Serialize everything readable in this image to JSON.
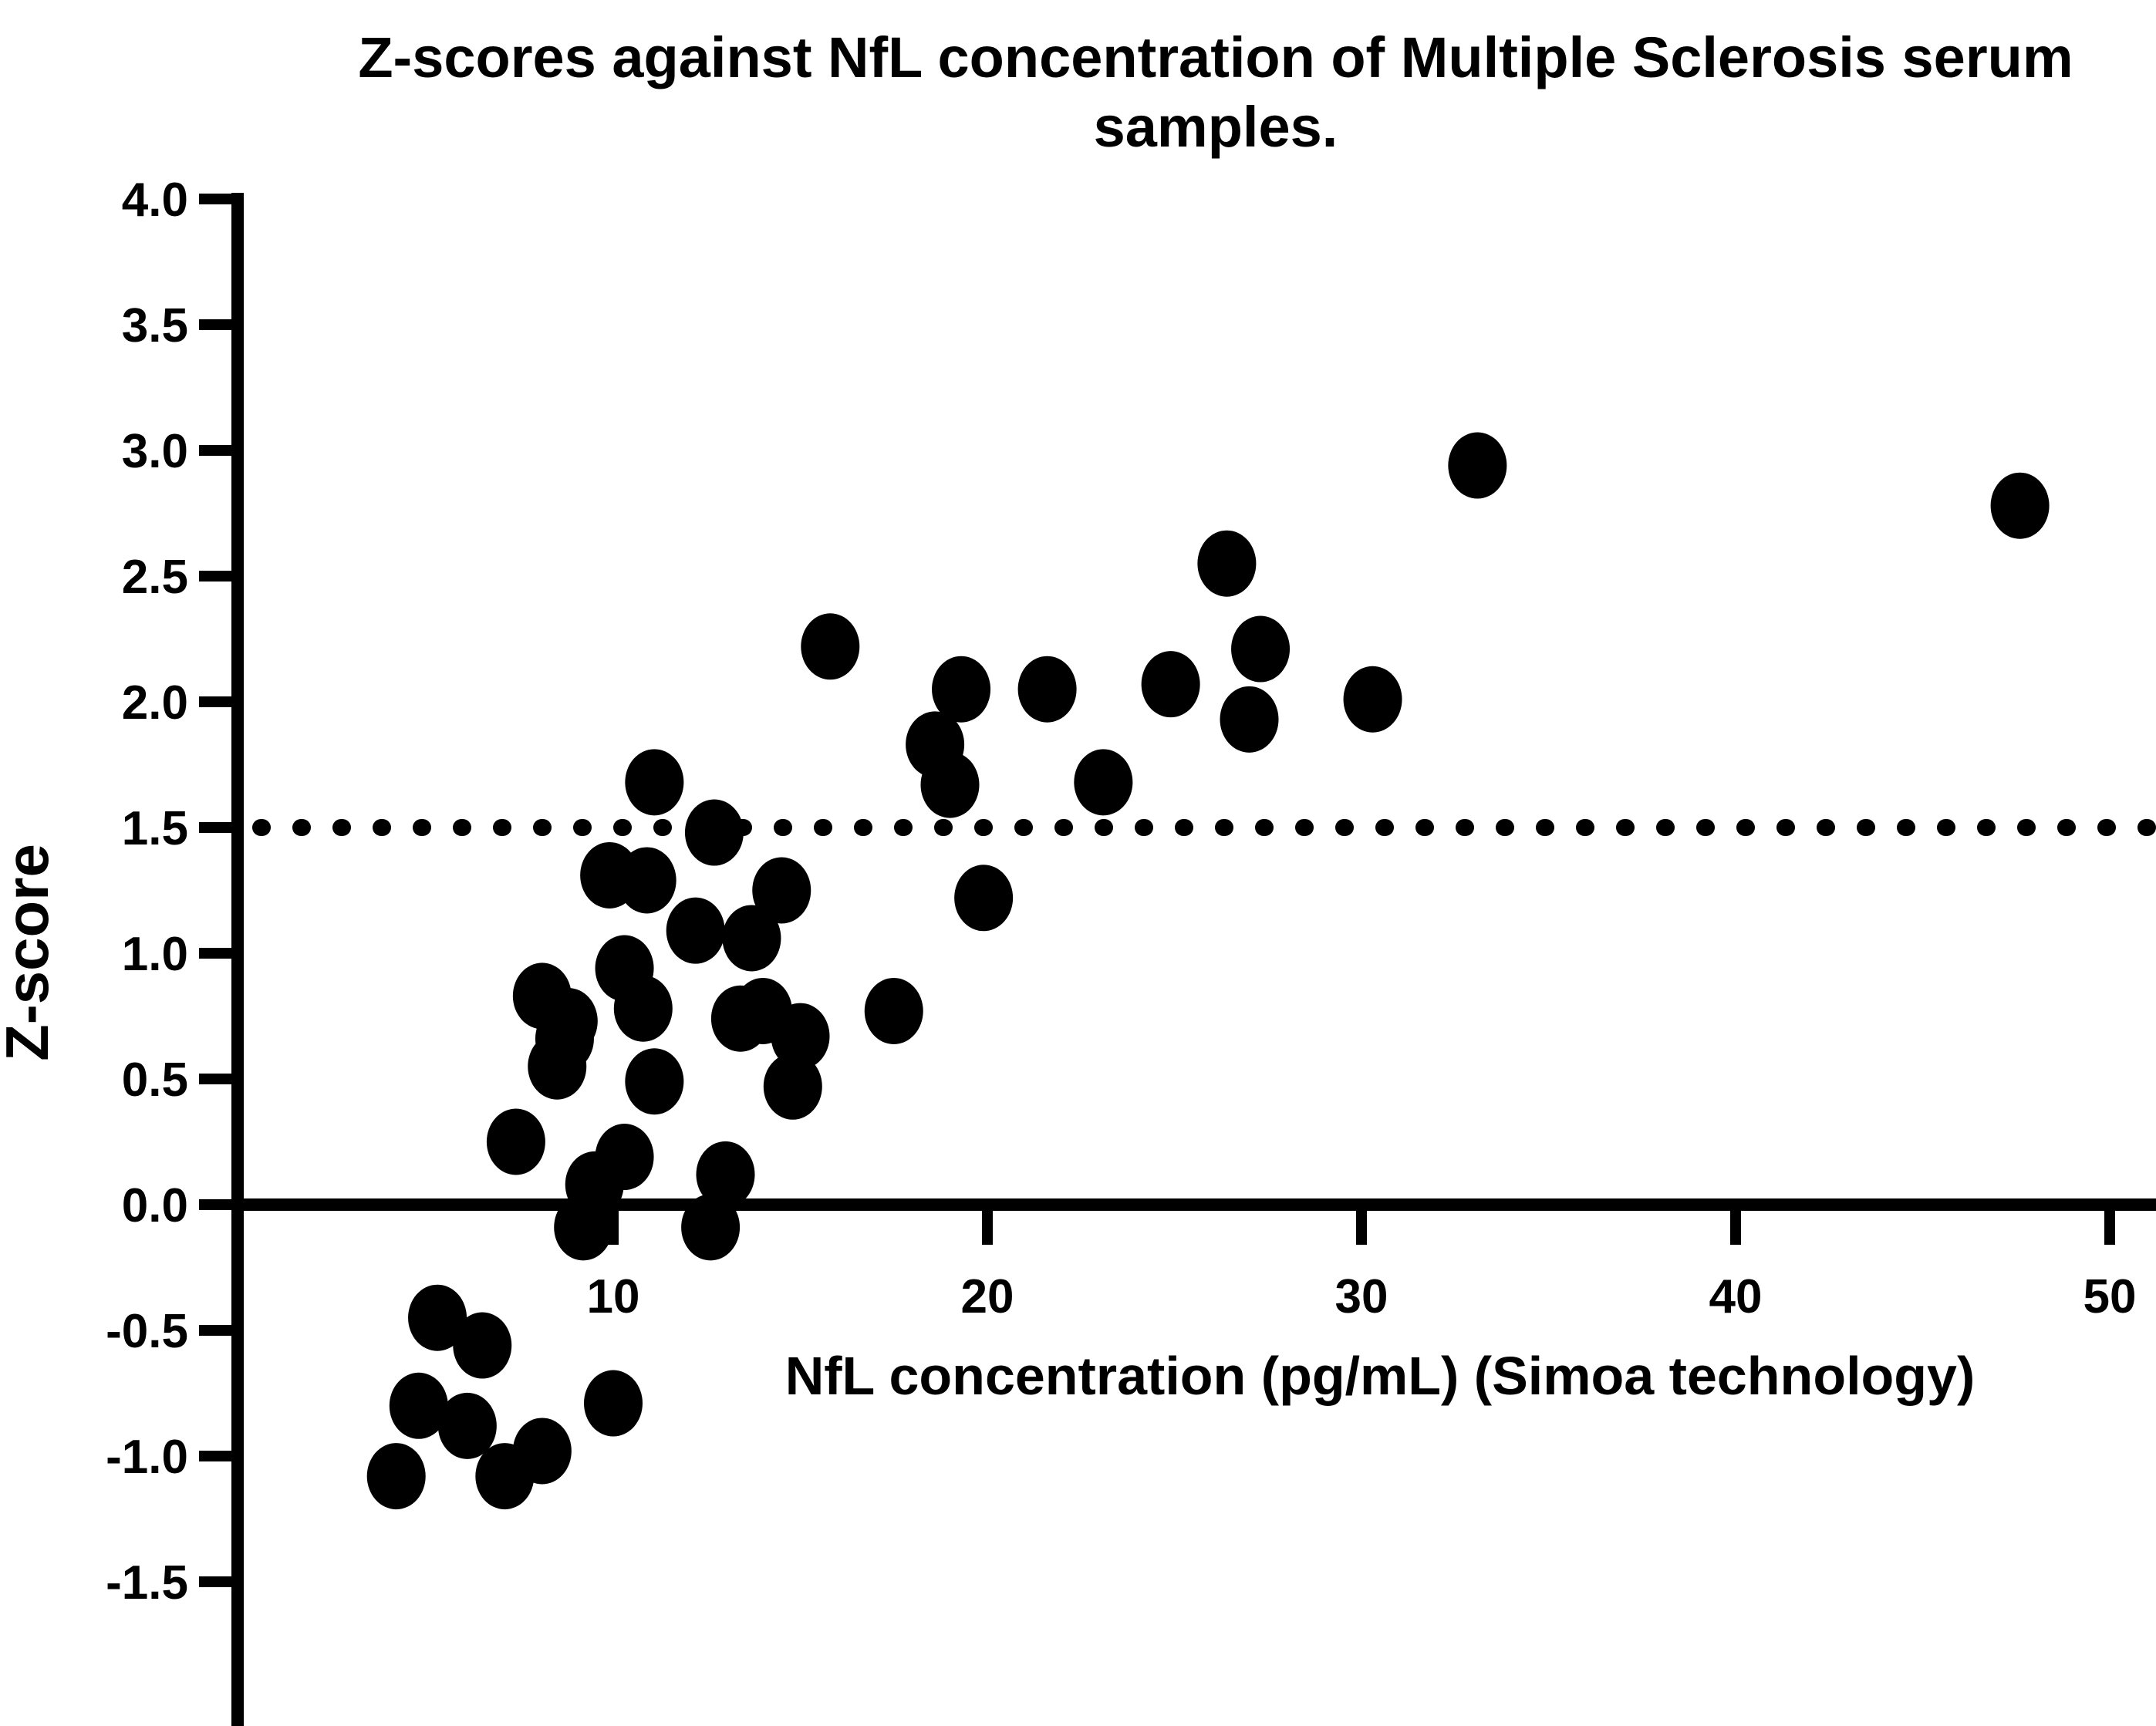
{
  "figure": {
    "title_line1": "Z-scores against NfL concentration of Multiple Sclerosis serum",
    "title_line2": "samples."
  },
  "chart_data": {
    "type": "scatter",
    "title": "Z-scores against NfL concentration of Multiple Sclerosis serum samples.",
    "xlabel": "NfL concentration (pg/mL) (Simoa technology)",
    "ylabel": "Z-score",
    "xlim": [
      0,
      51.2
    ],
    "ylim": [
      -2.08,
      4.0
    ],
    "x_ticks": [
      10,
      20,
      30,
      40,
      50
    ],
    "y_ticks": [
      4.0,
      3.5,
      3.0,
      2.5,
      2.0,
      1.5,
      1.0,
      0.5,
      0.0,
      -0.5,
      -1.0,
      -1.5
    ],
    "grid": false,
    "legend": "none",
    "threshold_line": {
      "y": 1.5,
      "style": "dotted",
      "color": "#000000"
    },
    "baseline": {
      "y": 0.0,
      "style": "solid",
      "color": "#000000"
    },
    "marker": {
      "shape": "ellipse",
      "color": "#000000"
    },
    "points": [
      [
        5.3,
        -0.45
      ],
      [
        6.5,
        -0.56
      ],
      [
        4.8,
        -0.8
      ],
      [
        6.1,
        -0.88
      ],
      [
        4.2,
        -1.08
      ],
      [
        7.1,
        -1.08
      ],
      [
        8.1,
        -0.98
      ],
      [
        10.0,
        -0.79
      ],
      [
        9.2,
        -0.09
      ],
      [
        12.6,
        -0.09
      ],
      [
        9.5,
        0.08
      ],
      [
        13.0,
        0.12
      ],
      [
        7.4,
        0.25
      ],
      [
        10.3,
        0.19
      ],
      [
        8.5,
        0.55
      ],
      [
        8.8,
        0.73
      ],
      [
        11.1,
        0.49
      ],
      [
        14.8,
        0.47
      ],
      [
        14.0,
        0.77
      ],
      [
        8.1,
        0.83
      ],
      [
        8.7,
        0.66
      ],
      [
        10.3,
        0.94
      ],
      [
        10.8,
        0.78
      ],
      [
        12.2,
        1.09
      ],
      [
        13.7,
        1.06
      ],
      [
        13.4,
        0.74
      ],
      [
        15.0,
        0.67
      ],
      [
        17.5,
        0.77
      ],
      [
        9.9,
        1.31
      ],
      [
        10.9,
        1.29
      ],
      [
        12.7,
        1.48
      ],
      [
        11.1,
        1.68
      ],
      [
        14.5,
        1.25
      ],
      [
        18.6,
        1.83
      ],
      [
        19.0,
        1.67
      ],
      [
        23.1,
        1.68
      ],
      [
        19.9,
        1.22
      ],
      [
        15.8,
        2.22
      ],
      [
        19.3,
        2.05
      ],
      [
        21.6,
        2.05
      ],
      [
        24.9,
        2.07
      ],
      [
        26.4,
        2.55
      ],
      [
        27.3,
        2.21
      ],
      [
        27.0,
        1.93
      ],
      [
        30.3,
        2.01
      ],
      [
        33.1,
        2.94
      ],
      [
        47.6,
        2.78
      ]
    ]
  }
}
